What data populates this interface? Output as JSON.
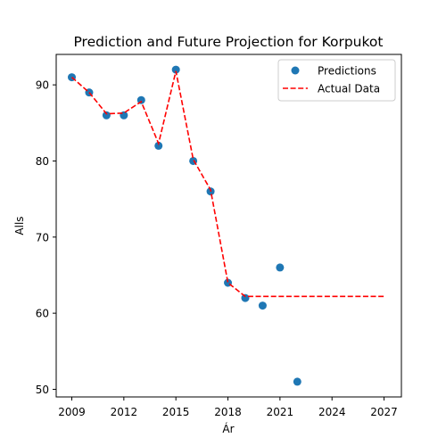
{
  "chart_data": {
    "type": "scatter",
    "title": "Prediction and Future Projection for Korpukot",
    "xlabel": "Ár",
    "ylabel": "Alls",
    "xlim": [
      2008.1,
      2028.0
    ],
    "ylim": [
      49.0,
      94.0
    ],
    "xticks": [
      2009,
      2012,
      2015,
      2018,
      2021,
      2024,
      2027
    ],
    "yticks": [
      50,
      60,
      70,
      80,
      90
    ],
    "legend_position": "upper right",
    "grid": false,
    "series": [
      {
        "name": "Predictions",
        "kind": "scatter",
        "color": "#1f77b4",
        "x": [
          2009,
          2010,
          2011,
          2012,
          2013,
          2014,
          2015,
          2016,
          2017,
          2018,
          2019,
          2020,
          2021,
          2022
        ],
        "y": [
          91,
          89,
          86,
          86,
          88,
          82,
          92,
          80,
          76,
          64,
          62,
          61,
          66,
          51
        ]
      },
      {
        "name": "Actual Data",
        "kind": "line",
        "style": "dashed",
        "color": "#ff0000",
        "x": [
          2009,
          2010,
          2011,
          2012,
          2013,
          2014,
          2015,
          2016,
          2017,
          2018,
          2019,
          2020,
          2021,
          2022,
          2023,
          2024,
          2025,
          2026,
          2027
        ],
        "y": [
          91,
          89,
          86.2,
          86.3,
          87.8,
          82.3,
          91.8,
          80.2,
          76.2,
          64,
          62.2,
          62.2,
          62.2,
          62.2,
          62.2,
          62.2,
          62.2,
          62.2,
          62.2
        ]
      }
    ]
  }
}
